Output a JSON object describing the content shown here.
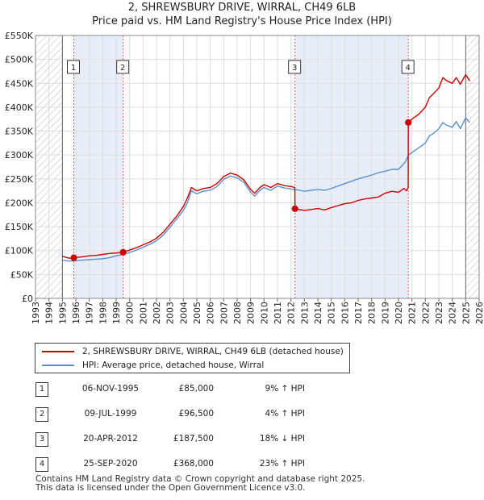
{
  "header": {
    "title": "2, SHREWSBURY DRIVE, WIRRAL, CH49 6LB",
    "subtitle": "Price paid vs. HM Land Registry's House Price Index (HPI)"
  },
  "colors": {
    "property": "#cc0000",
    "hpi": "#5b8fd0",
    "shade": "#e8eef8",
    "marker_line": "#e06060"
  },
  "legend": {
    "property_label": "2, SHREWSBURY DRIVE, WIRRAL, CH49 6LB (detached house)",
    "hpi_label": "HPI: Average price, detached house, Wirral"
  },
  "sales": [
    {
      "num": "1",
      "date": "06-NOV-1995",
      "price": "£85,000",
      "hpi": "9% ↑ HPI"
    },
    {
      "num": "2",
      "date": "09-JUL-1999",
      "price": "£96,500",
      "hpi": "4% ↑ HPI"
    },
    {
      "num": "3",
      "date": "20-APR-2012",
      "price": "£187,500",
      "hpi": "18% ↓ HPI"
    },
    {
      "num": "4",
      "date": "25-SEP-2020",
      "price": "£368,000",
      "hpi": "23% ↑ HPI"
    }
  ],
  "footer": {
    "line1": "Contains HM Land Registry data © Crown copyright and database right 2025.",
    "line2": "This data is licensed under the Open Government Licence v3.0."
  },
  "chart_data": {
    "type": "line",
    "title": "2, SHREWSBURY DRIVE, WIRRAL, CH49 6LB",
    "subtitle": "Price paid vs. HM Land Registry's House Price Index (HPI)",
    "xlim": [
      1993,
      2026
    ],
    "ylim": [
      0,
      550000
    ],
    "x_ticks": [
      1993,
      1994,
      1995,
      1996,
      1997,
      1998,
      1999,
      2000,
      2001,
      2002,
      2003,
      2004,
      2005,
      2006,
      2007,
      2008,
      2009,
      2010,
      2011,
      2012,
      2013,
      2014,
      2015,
      2016,
      2017,
      2018,
      2019,
      2020,
      2021,
      2022,
      2023,
      2024,
      2025,
      2026
    ],
    "y_ticks": [
      0,
      50000,
      100000,
      150000,
      200000,
      250000,
      300000,
      350000,
      400000,
      450000,
      500000,
      550000
    ],
    "y_tick_labels": [
      "£0",
      "£50K",
      "£100K",
      "£150K",
      "£200K",
      "£250K",
      "£300K",
      "£350K",
      "£400K",
      "£450K",
      "£500K",
      "£550K"
    ],
    "hatched_ranges": [
      [
        1993,
        1995.0
      ],
      [
        2025.0,
        2026
      ]
    ],
    "shaded_ranges": [
      [
        1995.85,
        1999.52
      ],
      [
        2012.3,
        2020.73
      ]
    ],
    "sale_markers": [
      {
        "label": "1",
        "x": 1995.85,
        "y": 85000
      },
      {
        "label": "2",
        "x": 1999.52,
        "y": 96500
      },
      {
        "label": "3",
        "x": 2012.3,
        "y": 187500
      },
      {
        "label": "4",
        "x": 2020.73,
        "y": 368000
      }
    ],
    "series": [
      {
        "name": "2, SHREWSBURY DRIVE, WIRRAL, CH49 6LB (detached house)",
        "color": "#cc0000",
        "x": [
          1995.0,
          1995.5,
          1995.85,
          1996.5,
          1997,
          1997.5,
          1998,
          1998.5,
          1999,
          1999.52,
          2000,
          2000.5,
          2001,
          2001.5,
          2002,
          2002.5,
          2003,
          2003.5,
          2004,
          2004.3,
          2004.6,
          2005,
          2005.5,
          2006,
          2006.5,
          2007,
          2007.5,
          2008,
          2008.5,
          2009,
          2009.3,
          2009.7,
          2010,
          2010.5,
          2011,
          2011.5,
          2012,
          2012.29,
          2012.3,
          2012.6,
          2013,
          2013.5,
          2014,
          2014.5,
          2015,
          2015.5,
          2016,
          2016.5,
          2017,
          2017.5,
          2018,
          2018.5,
          2019,
          2019.5,
          2020,
          2020.4,
          2020.6,
          2020.72,
          2020.73,
          2021,
          2021.5,
          2022,
          2022.3,
          2022.6,
          2023,
          2023.3,
          2023.6,
          2024,
          2024.3,
          2024.6,
          2025,
          2025.3
        ],
        "y": [
          88000,
          84000,
          85000,
          87000,
          89000,
          90000,
          92000,
          94000,
          95000,
          96500,
          101000,
          106000,
          112000,
          118000,
          126000,
          138000,
          155000,
          172000,
          192000,
          210000,
          232000,
          225000,
          230000,
          232000,
          240000,
          255000,
          262000,
          258000,
          248000,
          228000,
          220000,
          232000,
          238000,
          232000,
          240000,
          236000,
          234000,
          232000,
          187500,
          186000,
          184000,
          186000,
          188000,
          185000,
          190000,
          194000,
          198000,
          200000,
          205000,
          208000,
          210000,
          212000,
          220000,
          224000,
          222000,
          230000,
          225000,
          232000,
          368000,
          375000,
          385000,
          400000,
          420000,
          428000,
          440000,
          462000,
          455000,
          450000,
          462000,
          448000,
          468000,
          455000
        ]
      },
      {
        "name": "HPI: Average price, detached house, Wirral",
        "color": "#5b8fd0",
        "x": [
          1995.0,
          1995.5,
          1996,
          1996.5,
          1997,
          1997.5,
          1998,
          1998.5,
          1999,
          1999.5,
          2000,
          2000.5,
          2001,
          2001.5,
          2002,
          2002.5,
          2003,
          2003.5,
          2004,
          2004.3,
          2004.6,
          2005,
          2005.5,
          2006,
          2006.5,
          2007,
          2007.5,
          2008,
          2008.5,
          2009,
          2009.3,
          2009.7,
          2010,
          2010.5,
          2011,
          2011.5,
          2012,
          2012.5,
          2013,
          2013.5,
          2014,
          2014.5,
          2015,
          2015.5,
          2016,
          2016.5,
          2017,
          2017.5,
          2018,
          2018.5,
          2019,
          2019.5,
          2020,
          2020.5,
          2020.75,
          2021,
          2021.5,
          2022,
          2022.3,
          2022.6,
          2023,
          2023.3,
          2023.6,
          2024,
          2024.3,
          2024.6,
          2025,
          2025.3
        ],
        "y": [
          80000,
          78000,
          79000,
          80000,
          81000,
          82000,
          83000,
          85000,
          89000,
          92000,
          96000,
          101000,
          107000,
          113000,
          121000,
          132000,
          149000,
          166000,
          184000,
          200000,
          225000,
          219000,
          224000,
          226000,
          234000,
          249000,
          256000,
          252000,
          243000,
          222000,
          214000,
          226000,
          232000,
          226000,
          235000,
          231000,
          229000,
          227000,
          224000,
          226000,
          228000,
          226000,
          230000,
          235000,
          240000,
          245000,
          250000,
          254000,
          258000,
          263000,
          266000,
          270000,
          270000,
          285000,
          300000,
          305000,
          315000,
          325000,
          340000,
          345000,
          355000,
          368000,
          362000,
          358000,
          370000,
          355000,
          378000,
          368000
        ]
      }
    ]
  }
}
